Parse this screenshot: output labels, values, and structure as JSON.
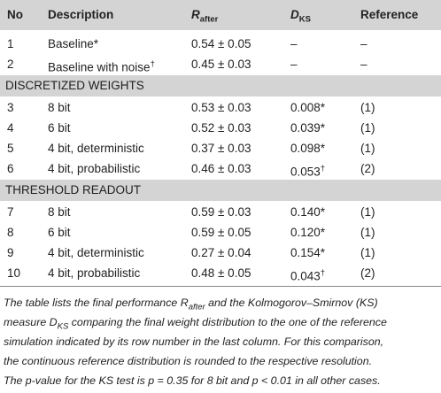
{
  "table": {
    "header": [
      "No",
      "Description",
      {
        "text": "R",
        "sub": "after"
      },
      {
        "text": "D",
        "sub": "KS"
      },
      "Reference"
    ],
    "rows": [
      {
        "cells": [
          "1",
          "Baseline*",
          "0.54 ± 0.05",
          "–",
          "–"
        ]
      },
      {
        "cells": [
          "2",
          {
            "text": "Baseline with noise",
            "sup": "†"
          },
          "0.45 ± 0.03",
          "–",
          "–"
        ]
      },
      {
        "section": "DISCRETIZED WEIGHTS"
      },
      {
        "cells": [
          "3",
          "8 bit",
          "0.53 ± 0.03",
          "0.008*",
          "(1)"
        ]
      },
      {
        "cells": [
          "4",
          "6 bit",
          "0.52 ± 0.03",
          "0.039*",
          "(1)"
        ]
      },
      {
        "cells": [
          "5",
          "4 bit, deterministic",
          "0.37 ± 0.03",
          "0.098*",
          "(1)"
        ]
      },
      {
        "cells": [
          "6",
          "4 bit, probabilistic",
          "0.46 ± 0.03",
          {
            "text": "0.053",
            "sup": "†"
          },
          "(2)"
        ]
      },
      {
        "section": "THRESHOLD READOUT"
      },
      {
        "cells": [
          "7",
          "8 bit",
          "0.59 ± 0.03",
          "0.140*",
          "(1)"
        ]
      },
      {
        "cells": [
          "8",
          "6 bit",
          "0.59 ± 0.05",
          "0.120*",
          "(1)"
        ]
      },
      {
        "cells": [
          "9",
          "4 bit, deterministic",
          "0.27 ± 0.04",
          "0.154*",
          "(1)"
        ]
      },
      {
        "cells": [
          "10",
          "4 bit, probabilistic",
          "0.48 ± 0.05",
          {
            "text": "0.043",
            "sup": "†"
          },
          "(2)"
        ]
      }
    ]
  },
  "caption": [
    [
      "The table lists the final performance R",
      {
        "sub": "after"
      },
      " and the Kolmogorov–Smirnov (KS)"
    ],
    [
      "measure D",
      {
        "sub": "KS"
      },
      " comparing the final weight distribution to the one of the reference"
    ],
    [
      "simulation indicated by its row number in the last column. For this comparison,"
    ],
    [
      "the continuous reference distribution is rounded to the respective resolution."
    ],
    [
      "The p-value for the KS test is p = 0.35 for 8 bit and p < 0.01 in all other cases."
    ]
  ]
}
